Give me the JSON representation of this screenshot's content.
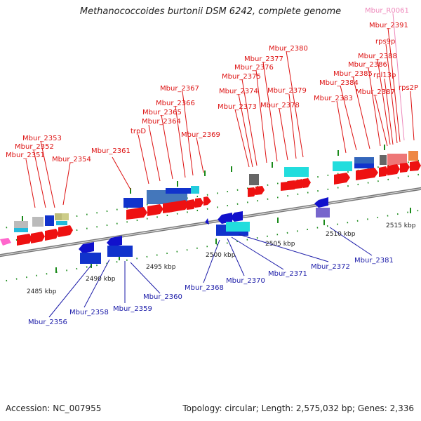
{
  "title": "Methanococcoides burtonii DSM 6242, complete genome",
  "footer": {
    "accession": "Accession: NC_007955",
    "summary": "Topology: circular; Length: 2,575,032 bp; Genes: 2,336"
  },
  "colors": {
    "forward_label": "#dd1111",
    "reverse_label": "#1a1aa8",
    "highlight_label": "#ee88bb",
    "backbone": "#888888"
  },
  "scale_labels": [
    {
      "text": "2485 kbp"
    },
    {
      "text": "2490 kbp"
    },
    {
      "text": "2495 kbp"
    },
    {
      "text": "2500 kbp"
    },
    {
      "text": "2505 kbp"
    },
    {
      "text": "2510 kbp"
    },
    {
      "text": "2515 kbp"
    }
  ],
  "forward_gene_labels": [
    "Mbur_2351",
    "Mbur_2352",
    "Mbur_2353",
    "Mbur_2354",
    "Mbur_2361",
    "trpD",
    "Mbur_2364",
    "Mbur_2365",
    "Mbur_2366",
    "Mbur_2367",
    "Mbur_2369",
    "Mbur_2373",
    "Mbur_2374",
    "Mbur_2375",
    "Mbur_2376",
    "Mbur_2377",
    "Mbur_2378",
    "Mbur_2379",
    "Mbur_2380",
    "Mbur_2383",
    "Mbur_2384",
    "Mbur_2385",
    "Mbur_2386",
    "Mbur_2387",
    "Mbur_2388",
    "rpl13p",
    "rps9p",
    "Mbur_2391",
    "Mbur_R0061",
    "rps2P"
  ],
  "reverse_gene_labels": [
    "Mbur_2356",
    "Mbur_2358",
    "Mbur_2359",
    "Mbur_2360",
    "Mbur_2368",
    "Mbur_2370",
    "Mbur_2371",
    "Mbur_2372",
    "Mbur_2381"
  ]
}
